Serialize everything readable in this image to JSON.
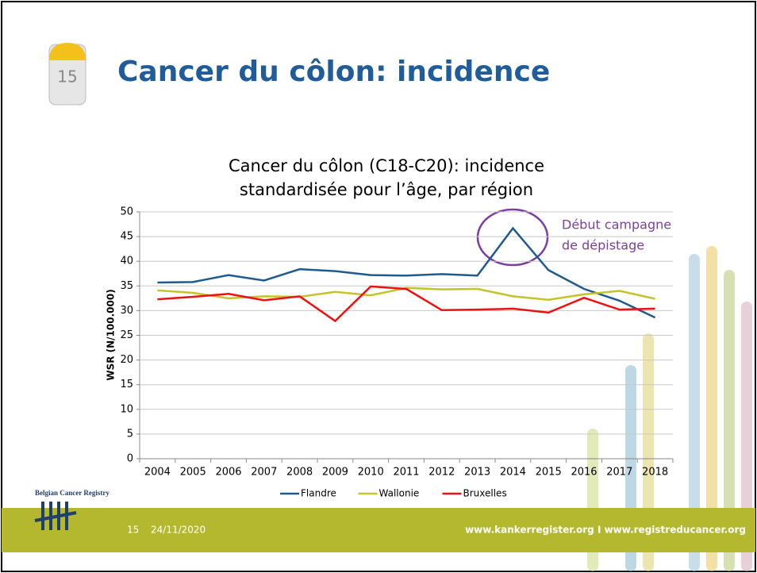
{
  "slide": {
    "milestone": "15",
    "title": "Cancer du côlon: incidence",
    "logo_text": "Belgian Cancer Registry",
    "footer": {
      "page": "15",
      "date": "24/11/2020",
      "links": "www.kankerregister.org I www.registreducancer.org"
    }
  },
  "chart_data": {
    "type": "line",
    "title": [
      "Cancer du côlon (C18-C20): incidence",
      "standardisée pour l’âge, par région"
    ],
    "ylabel": "WSR (N/100.000)",
    "annotation": [
      "Début campagne",
      "de dépistage"
    ],
    "categories": [
      "2004",
      "2005",
      "2006",
      "2007",
      "2008",
      "2009",
      "2010",
      "2011",
      "2012",
      "2013",
      "2014",
      "2015",
      "2016",
      "2017",
      "2018"
    ],
    "series": [
      {
        "name": "Flandre",
        "color": "#1f5b8e",
        "values": [
          35.7,
          35.8,
          37.2,
          36.1,
          38.4,
          38.0,
          37.2,
          37.1,
          37.4,
          37.1,
          46.7,
          38.2,
          34.4,
          32.0,
          28.6
        ]
      },
      {
        "name": "Wallonie",
        "color": "#c3c32a",
        "values": [
          34.1,
          33.6,
          32.5,
          32.9,
          32.8,
          33.8,
          33.1,
          34.6,
          34.3,
          34.4,
          32.9,
          32.2,
          33.3,
          34.0,
          32.4
        ]
      },
      {
        "name": "Bruxelles",
        "color": "#ee1111",
        "values": [
          32.3,
          32.8,
          33.4,
          32.1,
          32.9,
          27.9,
          34.9,
          34.4,
          30.1,
          30.2,
          30.4,
          29.6,
          32.6,
          30.2,
          30.4
        ]
      }
    ],
    "ylim": [
      0,
      50
    ],
    "yticks": [
      0,
      5,
      10,
      15,
      20,
      25,
      30,
      35,
      40,
      45,
      50
    ],
    "grid": true,
    "legend": "bottom"
  }
}
